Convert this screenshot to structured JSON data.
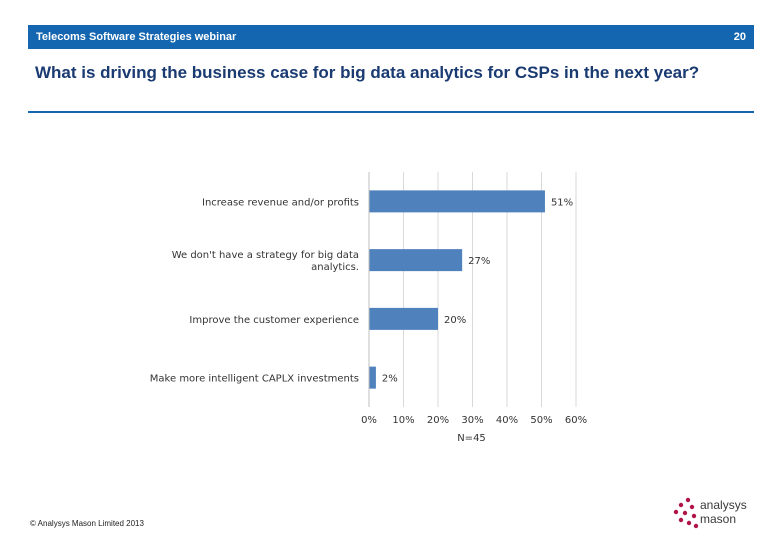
{
  "header": {
    "title": "Telecoms Software Strategies webinar",
    "page_number": "20"
  },
  "slide": {
    "title": "What is driving the business case for big data analytics for CSPs in the next year?"
  },
  "chart_data": {
    "type": "bar",
    "orientation": "horizontal",
    "categories": [
      "Increase revenue and/or profits",
      "We don't have a strategy for big data analytics.",
      "Improve the customer experience",
      "Make more intelligent CAPLX investments"
    ],
    "category_lines": [
      [
        "Increase revenue and/or profits"
      ],
      [
        "We don't have a strategy for big data",
        "analytics."
      ],
      [
        "Improve the customer experience"
      ],
      [
        "Make more intelligent CAPLX investments"
      ]
    ],
    "values": [
      51,
      27,
      20,
      2
    ],
    "data_labels": [
      "51%",
      "27%",
      "20%",
      "2%"
    ],
    "xlim": [
      0,
      60
    ],
    "x_ticks": [
      "0%",
      "10%",
      "20%",
      "30%",
      "40%",
      "50%",
      "60%"
    ],
    "grid": "vertical",
    "note": "N=45",
    "bar_color": "#4f81bd"
  },
  "footer": {
    "copyright": "© Analysys Mason Limited 2013",
    "logo_line1": "analysys",
    "logo_line2": "mason"
  }
}
